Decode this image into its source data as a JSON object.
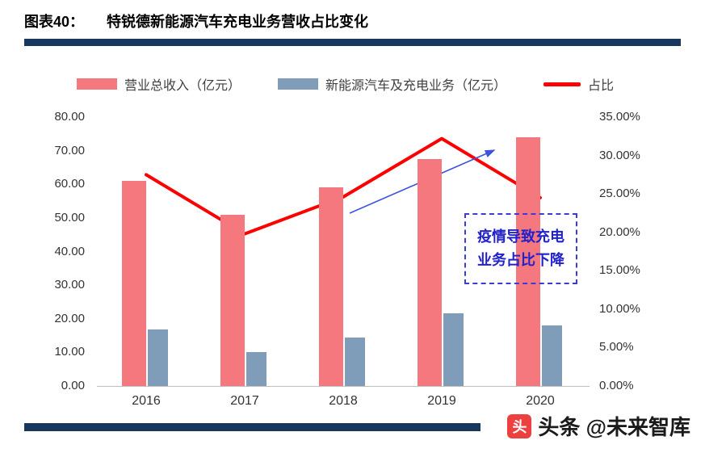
{
  "header": {
    "label": "图表40：",
    "title": "特锐德新能源汽车充电业务营收占比变化"
  },
  "chart_data": {
    "type": "bar+line combo",
    "categories": [
      "2016",
      "2017",
      "2018",
      "2019",
      "2020"
    ],
    "series": [
      {
        "name": "营业总收入（亿元）",
        "type": "bar",
        "axis": "left",
        "color": "#f4787d",
        "values": [
          61,
          51,
          59,
          67.5,
          74
        ]
      },
      {
        "name": "新能源汽车及充电业务（亿元）",
        "type": "bar",
        "axis": "left",
        "color": "#7f9db9",
        "values": [
          16.8,
          10,
          14.5,
          21.7,
          18.1
        ]
      },
      {
        "name": "占比",
        "type": "line",
        "axis": "right",
        "color": "#ff0000",
        "values": [
          27.5,
          19.8,
          24.6,
          32.2,
          24.5
        ]
      }
    ],
    "left_axis": {
      "min": 0,
      "max": 80,
      "step": 10,
      "labels": [
        "80.00",
        "70.00",
        "60.00",
        "50.00",
        "40.00",
        "30.00",
        "20.00",
        "10.00",
        "0.00"
      ]
    },
    "right_axis": {
      "min": 0,
      "max": 35,
      "step": 5,
      "labels": [
        "35.00%",
        "30.00%",
        "25.00%",
        "20.00%",
        "15.00%",
        "10.00%",
        "5.00%",
        "0.00%"
      ]
    },
    "grid": "off",
    "legend_position": "top",
    "annotation": {
      "lines": [
        "疫情导致充电",
        "业务占比下降"
      ],
      "color": "#2222cc"
    }
  },
  "footer": {
    "logo_glyph": "头",
    "brand": "头条",
    "handle": "@未来智库"
  }
}
